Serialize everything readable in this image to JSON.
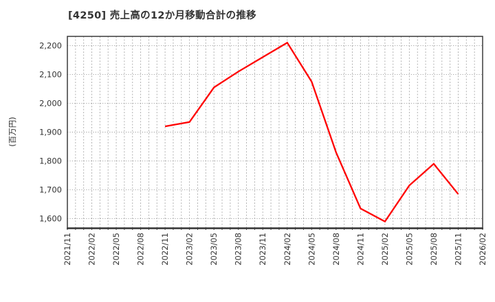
{
  "header": {
    "title": "[4250]  売上高の12か月移動合計の推移"
  },
  "chart_data": {
    "type": "line",
    "title": "[4250]  売上高の12か月移動合計の推移",
    "xlabel": "",
    "ylabel": "(百万円)",
    "x_range": [
      "2021/11",
      "2026/02"
    ],
    "x_tick_labels": [
      "2021/11",
      "2022/02",
      "2022/05",
      "2022/08",
      "2022/11",
      "2023/02",
      "2023/05",
      "2023/08",
      "2023/11",
      "2024/02",
      "2024/05",
      "2024/08",
      "2024/11",
      "2025/02",
      "2025/05",
      "2025/08",
      "2025/11",
      "2026/02"
    ],
    "y_ticks": [
      1600,
      1700,
      1800,
      1900,
      2000,
      2100,
      2200
    ],
    "y_tick_labels": [
      "1,600",
      "1,700",
      "1,800",
      "1,900",
      "2,000",
      "2,100",
      "2,200"
    ],
    "ylim": [
      1568,
      2232
    ],
    "grid": {
      "on": true,
      "style": "dotted",
      "vertical_interval": "monthly",
      "horizontal_interval": 100
    },
    "legend": "none",
    "colors": {
      "line": "#ff0000",
      "grid": "#aaaaaa",
      "axis": "#3a3a3a",
      "text": "#333333"
    },
    "series": [
      {
        "color": "#ff0000",
        "points": [
          {
            "x": "2022/11",
            "y": 1920
          },
          {
            "x": "2023/02",
            "y": 1935
          },
          {
            "x": "2023/05",
            "y": 2055
          },
          {
            "x": "2023/08",
            "y": 2110
          },
          {
            "x": "2023/11",
            "y": 2160
          },
          {
            "x": "2024/02",
            "y": 2210
          },
          {
            "x": "2024/05",
            "y": 2075
          },
          {
            "x": "2024/08",
            "y": 1830
          },
          {
            "x": "2024/11",
            "y": 1635
          },
          {
            "x": "2025/02",
            "y": 1590
          },
          {
            "x": "2025/05",
            "y": 1715
          },
          {
            "x": "2025/08",
            "y": 1790
          },
          {
            "x": "2025/11",
            "y": 1685
          }
        ]
      }
    ]
  }
}
